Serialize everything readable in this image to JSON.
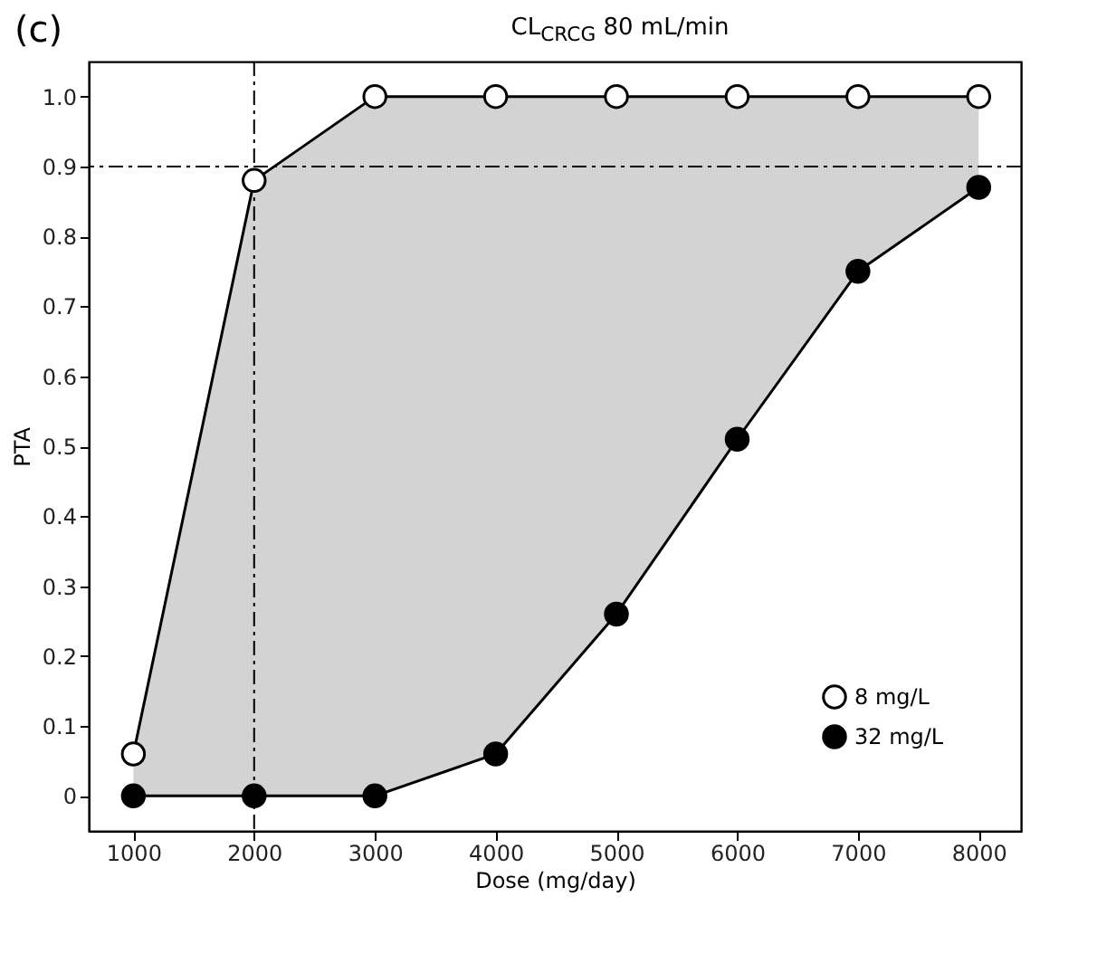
{
  "chart_data": {
    "type": "line",
    "title": "CL$_{CRCG}$ 80 mL/min",
    "xlabel": "Dose (mg/day)",
    "ylabel": "PTA",
    "annotations": [
      "(c)"
    ],
    "x": [
      1000,
      2000,
      3000,
      4000,
      5000,
      6000,
      7000,
      8000
    ],
    "series": [
      {
        "name": "8 mg/L",
        "color": "#ffffff",
        "values": [
          0.06,
          0.88,
          1,
          1,
          1,
          1,
          1,
          1
        ],
        "lower": [
          0,
          0,
          0,
          0.06,
          0.26,
          0.51,
          0.75,
          0.87
        ],
        "upper": [
          0.06,
          0.88,
          1,
          1,
          1,
          1,
          1,
          1
        ]
      },
      {
        "name": "32 mg/L",
        "color": "#000000",
        "values": [
          0,
          0,
          0,
          0.06,
          0.26,
          0.51,
          0.75,
          0.87
        ]
      }
    ],
    "xlim": [
      630,
      8350
    ],
    "xticks": [
      1000,
      2000,
      3000,
      4000,
      5000,
      6000,
      7000,
      8000
    ],
    "ylim": [
      -0.05,
      1.05
    ],
    "yticks": [
      0,
      0.1,
      0.2,
      0.3,
      0.4,
      0.5,
      0.6,
      0.7,
      0.8,
      0.9,
      {
        "value": 1,
        "label": "1.0"
      }
    ],
    "ref_lines": [
      {
        "axis": "x",
        "value": 2000,
        "line_style": "dashed"
      },
      {
        "axis": "y",
        "value": 0.9,
        "line_style": "dashed"
      }
    ],
    "grid": false,
    "legend": "bottom right",
    "marker": "circle",
    "line_style": "solid"
  }
}
